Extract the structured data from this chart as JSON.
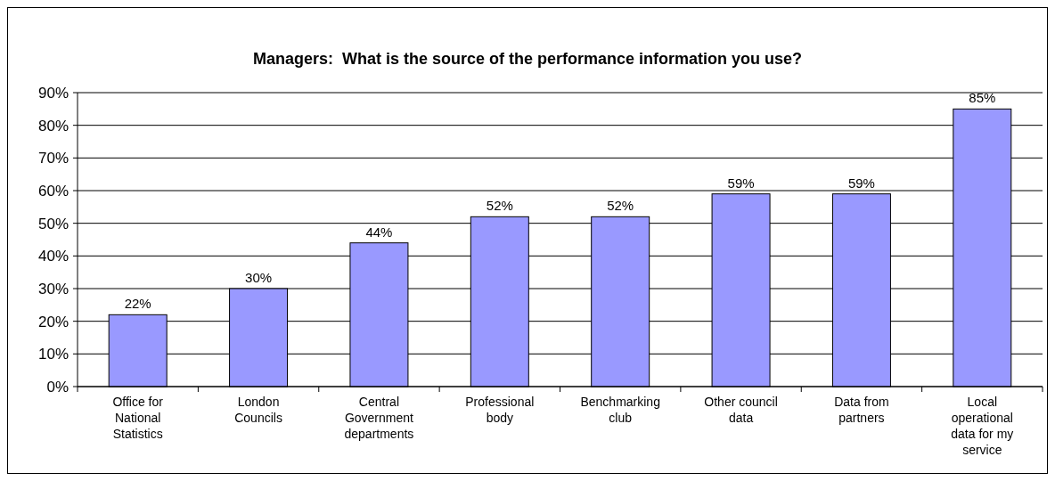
{
  "chart_data": {
    "type": "bar",
    "title": "Managers:  What is the source of the performance information you use?",
    "categories": [
      "Office for National Statistics",
      "London Councils",
      "Central Government departments",
      "Professional body",
      "Benchmarking club",
      "Other council data",
      "Data from partners",
      "Local operational data for my service"
    ],
    "values": [
      22,
      30,
      44,
      52,
      52,
      59,
      59,
      85
    ],
    "color": "#9999ff",
    "value_labels": [
      "22%",
      "30%",
      "44%",
      "52%",
      "52%",
      "59%",
      "59%",
      "85%"
    ],
    "ylim": [
      0,
      90
    ],
    "yticks": [
      {
        "value": 0,
        "label": "0%"
      },
      {
        "value": 10,
        "label": "10%"
      },
      {
        "value": 20,
        "label": "20%"
      },
      {
        "value": 30,
        "label": "30%"
      },
      {
        "value": 40,
        "label": "40%"
      },
      {
        "value": 50,
        "label": "50%"
      },
      {
        "value": 60,
        "label": "60%"
      },
      {
        "value": 70,
        "label": "70%"
      },
      {
        "value": 80,
        "label": "80%"
      },
      {
        "value": 90,
        "label": "90%"
      }
    ],
    "grid": "y"
  }
}
